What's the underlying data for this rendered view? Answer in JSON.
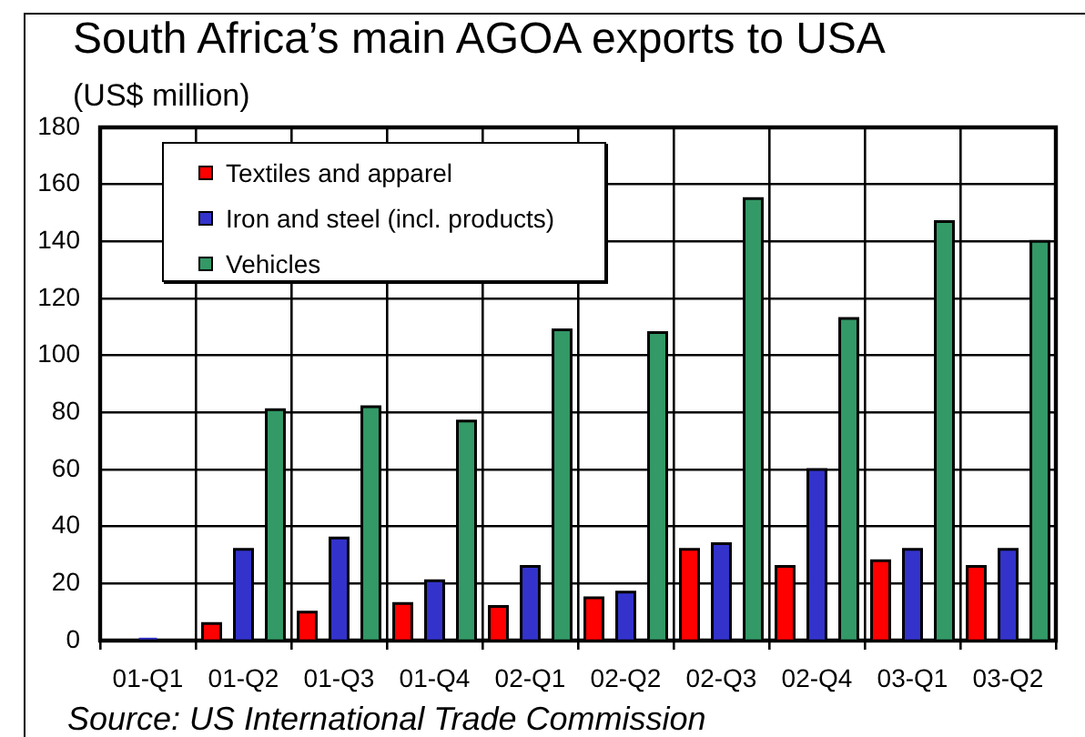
{
  "chart_data": {
    "type": "bar",
    "title": "South Africa’s main AGOA exports to USA",
    "subtitle": "(US$ million)",
    "categories": [
      "01-Q1",
      "01-Q2",
      "01-Q3",
      "01-Q4",
      "02-Q1",
      "02-Q2",
      "02-Q3",
      "02-Q4",
      "03-Q1",
      "03-Q2"
    ],
    "series": [
      {
        "name": "Textiles and apparel",
        "color": "#ff0000",
        "values": [
          0,
          6,
          10,
          13,
          12,
          15,
          32,
          26,
          28,
          26
        ]
      },
      {
        "name": "Iron and steel (incl. products)",
        "color": "#3333cc",
        "values": [
          1,
          32,
          36,
          21,
          26,
          17,
          34,
          60,
          32,
          32
        ]
      },
      {
        "name": "Vehicles",
        "color": "#339966",
        "values": [
          0,
          81,
          82,
          77,
          109,
          108,
          155,
          113,
          147,
          140
        ]
      }
    ],
    "ylim": [
      0,
      180
    ],
    "yticks": [
      0,
      20,
      40,
      60,
      80,
      100,
      120,
      140,
      160,
      180
    ],
    "grid": true,
    "legend": "top left",
    "annotations": [
      "Source: US International Trade Commission"
    ]
  }
}
